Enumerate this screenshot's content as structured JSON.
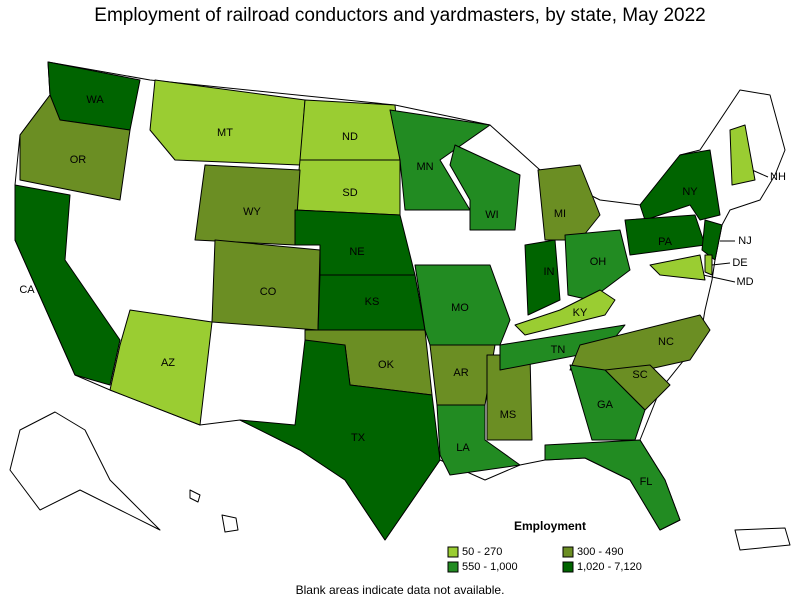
{
  "title": "Employment of railroad conductors and yardmasters, by state, May 2022",
  "legend": {
    "title": "Employment",
    "items": [
      {
        "label": "50 - 270",
        "color": "#9acd32"
      },
      {
        "label": "300 - 490",
        "color": "#6b8e23"
      },
      {
        "label": "550 - 1,000",
        "color": "#228b22"
      },
      {
        "label": "1,020 - 7,120",
        "color": "#006400"
      }
    ]
  },
  "note": "Blank areas indicate data not available.",
  "states": [
    {
      "abbr": "WA",
      "class": 3
    },
    {
      "abbr": "OR",
      "class": 1
    },
    {
      "abbr": "CA",
      "class": 3
    },
    {
      "abbr": "MT",
      "class": 0
    },
    {
      "abbr": "ND",
      "class": 0
    },
    {
      "abbr": "SD",
      "class": 0
    },
    {
      "abbr": "WY",
      "class": 1
    },
    {
      "abbr": "NE",
      "class": 3
    },
    {
      "abbr": "CO",
      "class": 1
    },
    {
      "abbr": "KS",
      "class": 3
    },
    {
      "abbr": "AZ",
      "class": 0
    },
    {
      "abbr": "OK",
      "class": 1
    },
    {
      "abbr": "TX",
      "class": 3
    },
    {
      "abbr": "MN",
      "class": 2
    },
    {
      "abbr": "WI",
      "class": 2
    },
    {
      "abbr": "MO",
      "class": 2
    },
    {
      "abbr": "AR",
      "class": 1
    },
    {
      "abbr": "LA",
      "class": 2
    },
    {
      "abbr": "MS",
      "class": 1
    },
    {
      "abbr": "MI",
      "class": 1
    },
    {
      "abbr": "IN",
      "class": 3
    },
    {
      "abbr": "OH",
      "class": 2
    },
    {
      "abbr": "KY",
      "class": 0
    },
    {
      "abbr": "TN",
      "class": 2
    },
    {
      "abbr": "NC",
      "class": 1
    },
    {
      "abbr": "SC",
      "class": 1
    },
    {
      "abbr": "GA",
      "class": 2
    },
    {
      "abbr": "FL",
      "class": 2
    },
    {
      "abbr": "NY",
      "class": 3
    },
    {
      "abbr": "PA",
      "class": 3
    },
    {
      "abbr": "NJ",
      "class": 3
    },
    {
      "abbr": "DE",
      "class": 0
    },
    {
      "abbr": "MD",
      "class": 0
    },
    {
      "abbr": "NH",
      "class": 0
    }
  ]
}
